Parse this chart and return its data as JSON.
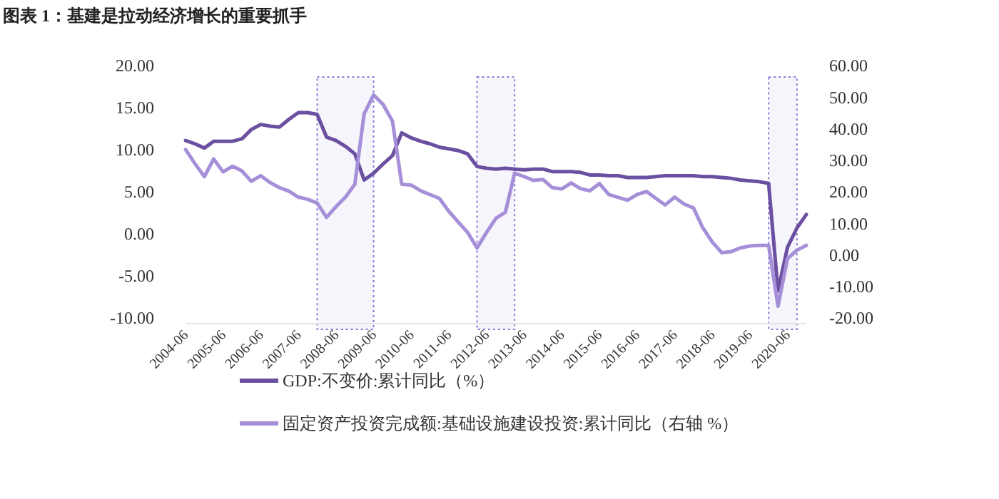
{
  "chart_data": {
    "type": "line",
    "title": "图表 1：基建是拉动经济增长的重要抓手",
    "x": [
      "2004-06",
      "2004-09",
      "2004-12",
      "2005-03",
      "2005-06",
      "2005-09",
      "2005-12",
      "2006-03",
      "2006-06",
      "2006-09",
      "2006-12",
      "2007-03",
      "2007-06",
      "2007-09",
      "2007-12",
      "2008-03",
      "2008-06",
      "2008-09",
      "2008-12",
      "2009-03",
      "2009-06",
      "2009-09",
      "2009-12",
      "2010-03",
      "2010-06",
      "2010-09",
      "2010-12",
      "2011-03",
      "2011-06",
      "2011-09",
      "2011-12",
      "2012-03",
      "2012-06",
      "2012-09",
      "2012-12",
      "2013-03",
      "2013-06",
      "2013-09",
      "2013-12",
      "2014-03",
      "2014-06",
      "2014-09",
      "2014-12",
      "2015-03",
      "2015-06",
      "2015-09",
      "2015-12",
      "2016-03",
      "2016-06",
      "2016-09",
      "2016-12",
      "2017-03",
      "2017-06",
      "2017-09",
      "2017-12",
      "2018-03",
      "2018-06",
      "2018-09",
      "2018-12",
      "2019-03",
      "2019-06",
      "2019-09",
      "2019-12",
      "2020-03",
      "2020-06",
      "2020-09",
      "2020-12"
    ],
    "series": [
      {
        "name": "GDP:不变价:累计同比（%）",
        "color": "#6b4fa0",
        "values": [
          11.1,
          10.7,
          10.2,
          11.0,
          11.0,
          11.0,
          11.3,
          12.4,
          13.0,
          12.8,
          12.7,
          13.6,
          14.4,
          14.4,
          14.2,
          11.5,
          11.1,
          10.4,
          9.5,
          6.4,
          7.2,
          8.3,
          9.3,
          12.0,
          11.4,
          11.0,
          10.7,
          10.3,
          10.1,
          9.9,
          9.5,
          8.0,
          7.8,
          7.7,
          7.8,
          7.7,
          7.6,
          7.7,
          7.7,
          7.4,
          7.4,
          7.4,
          7.3,
          7.0,
          7.0,
          6.9,
          6.9,
          6.7,
          6.7,
          6.7,
          6.8,
          6.9,
          6.9,
          6.9,
          6.9,
          6.8,
          6.8,
          6.7,
          6.6,
          6.4,
          6.3,
          6.2,
          6.0,
          -6.8,
          -1.6,
          0.7,
          2.3
        ]
      },
      {
        "name": "固定资产投资完成额:基础设施建设投资:累计同比（右轴 %）",
        "color": "#a58fd8",
        "axis": "y2",
        "values": [
          33.4,
          28.9,
          24.8,
          30.4,
          26.3,
          28.1,
          26.6,
          23.3,
          25.1,
          22.9,
          21.3,
          20.2,
          18.3,
          17.6,
          16.4,
          11.9,
          15.3,
          18.3,
          22.4,
          44.7,
          50.7,
          47.7,
          42.4,
          22.4,
          22.1,
          20.3,
          19.1,
          17.9,
          13.8,
          10.4,
          7.1,
          2.2,
          7.1,
          11.6,
          13.5,
          25.9,
          24.8,
          23.6,
          23.9,
          21.3,
          20.9,
          22.8,
          21.0,
          20.3,
          22.6,
          19.1,
          18.2,
          17.3,
          19.1,
          20.1,
          17.9,
          15.8,
          18.3,
          16.1,
          14.9,
          8.6,
          4.1,
          0.7,
          1.0,
          2.2,
          2.8,
          3.0,
          3.0,
          -16.3,
          -1.2,
          1.5,
          3.0
        ]
      }
    ],
    "xlim": [
      "2004-06",
      "2020-12"
    ],
    "xticks": [
      "2004-06",
      "2005-06",
      "2006-06",
      "2007-06",
      "2008-06",
      "2009-06",
      "2010-06",
      "2011-06",
      "2012-06",
      "2013-06",
      "2014-06",
      "2015-06",
      "2016-06",
      "2017-06",
      "2018-06",
      "2019-06",
      "2020-06"
    ],
    "ylim": [
      -10,
      20
    ],
    "yticks": [
      {
        "value": -10,
        "label": "-10.00"
      },
      {
        "value": -5,
        "label": "-5.00"
      },
      {
        "value": 0,
        "label": "0.00"
      },
      {
        "value": 5,
        "label": "5.00"
      },
      {
        "value": 10,
        "label": "10.00"
      },
      {
        "value": 15,
        "label": "15.00"
      },
      {
        "value": 20,
        "label": "20.00"
      }
    ],
    "y2lim": [
      -20,
      60
    ],
    "y2ticks": [
      {
        "value": -20,
        "label": "-20.00"
      },
      {
        "value": -10,
        "label": "-10.00"
      },
      {
        "value": 0,
        "label": "0.00"
      },
      {
        "value": 10,
        "label": "10.00"
      },
      {
        "value": 20,
        "label": "20.00"
      },
      {
        "value": 30,
        "label": "30.00"
      },
      {
        "value": 40,
        "label": "40.00"
      },
      {
        "value": 50,
        "label": "50.00"
      },
      {
        "value": 60,
        "label": "60.00"
      }
    ],
    "bands": [
      {
        "axis": "x",
        "from": "2007-12",
        "to": "2009-06",
        "color": "#8a7ad6"
      },
      {
        "axis": "x",
        "from": "2012-03",
        "to": "2013-03",
        "color": "#8a7ad6"
      },
      {
        "axis": "x",
        "from": "2019-12",
        "to": "2020-09",
        "color": "#8a7ad6"
      }
    ],
    "legend": "bottom",
    "grid": false,
    "marker": "none",
    "line_style": "solid"
  }
}
